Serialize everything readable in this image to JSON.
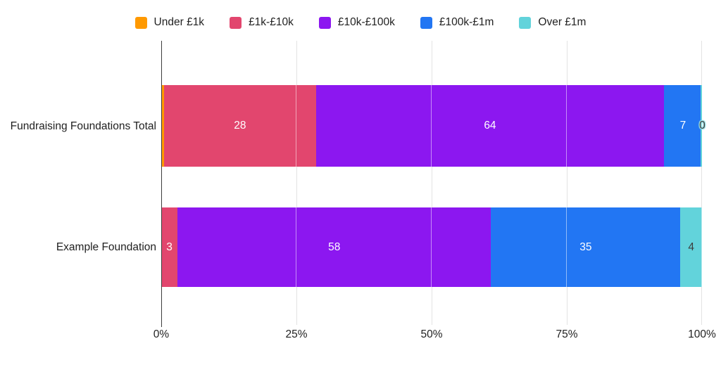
{
  "page": {
    "background": "#ffffff"
  },
  "chart_data": {
    "type": "bar",
    "subtype": "horizontal-stacked-100pct",
    "title": "",
    "categories": [
      "Fundraising Foundations Total",
      "Example Foundation"
    ],
    "series": [
      {
        "name": "Under £1k",
        "color": "#FF9900",
        "values": [
          0.5,
          0
        ],
        "labels": [
          "",
          ""
        ],
        "label_color": "#ffffff"
      },
      {
        "name": "£1k-£10k",
        "color": "#E2466E",
        "values": [
          28,
          3
        ],
        "labels": [
          "28",
          "3"
        ],
        "label_color": "#ffffff"
      },
      {
        "name": "£10k-£100k",
        "color": "#8C17F0",
        "values": [
          64,
          58
        ],
        "labels": [
          "64",
          "58"
        ],
        "label_color": "#ffffff"
      },
      {
        "name": "£100k-£1m",
        "color": "#2276F3",
        "values": [
          7,
          35
        ],
        "labels": [
          "7",
          "35"
        ],
        "label_color": "#ffffff"
      },
      {
        "name": "Over £1m",
        "color": "#62D3DB",
        "values": [
          0,
          4
        ],
        "labels": [
          "0",
          "4"
        ],
        "label_color": "#3d3d3d",
        "outside_halo_color": "#9EE3E6"
      }
    ],
    "x_ticks": [
      "0%",
      "25%",
      "50%",
      "75%",
      "100%"
    ],
    "xlim": [
      0,
      100
    ],
    "grid": true,
    "legend_position": "top",
    "axis_color": "#3c3c3c",
    "gridline_color": "#e3e3e3",
    "text_color": "#222222"
  }
}
